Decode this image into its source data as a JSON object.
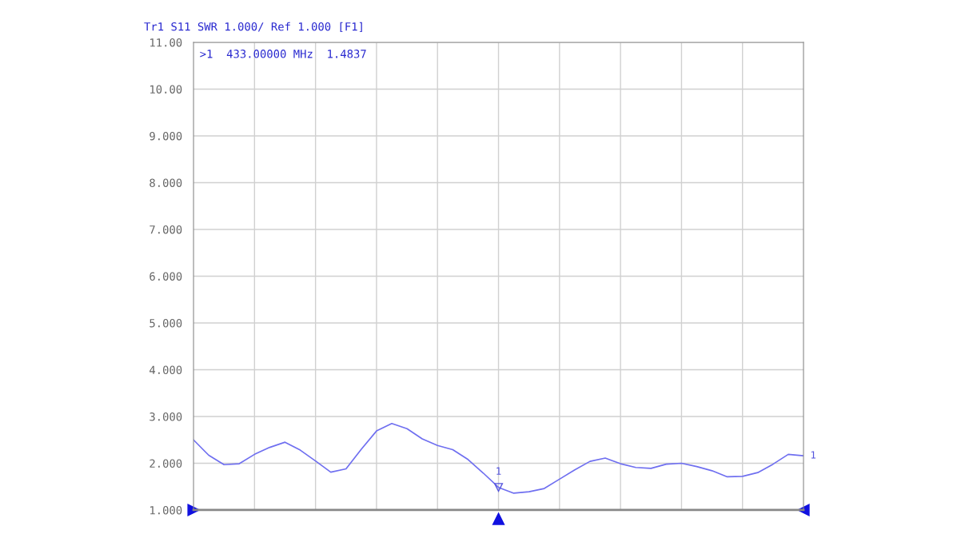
{
  "chart_data": {
    "type": "line",
    "title": "Tr1 S11 SWR 1.000/ Ref 1.000 [F1]",
    "categories": [
      null,
      null,
      null,
      null,
      null,
      null,
      null,
      null,
      null,
      null,
      null,
      null,
      null,
      null,
      null,
      null,
      null,
      null,
      null,
      null,
      null,
      null,
      null,
      null,
      null,
      null,
      null,
      null,
      null,
      null,
      null,
      null,
      null,
      null,
      null,
      null,
      null,
      null,
      null,
      null,
      null
    ],
    "series": [
      {
        "color": "#6f6ff0",
        "values": [
          2.5,
          2.17,
          1.97,
          1.99,
          2.19,
          2.34,
          2.45,
          2.28,
          2.05,
          1.81,
          1.88,
          2.3,
          2.69,
          2.85,
          2.74,
          2.52,
          2.38,
          2.29,
          2.08,
          1.79,
          1.4837,
          1.36,
          1.39,
          1.46,
          1.66,
          1.86,
          2.04,
          2.11,
          1.99,
          1.91,
          1.89,
          1.98,
          2.0,
          1.93,
          1.84,
          1.71,
          1.72,
          1.8,
          1.98,
          2.19,
          2.16
        ]
      }
    ],
    "ylim": [
      1,
      11
    ],
    "yticks": [
      {
        "value": 1,
        "label": "1.000"
      },
      {
        "value": 2,
        "label": "2.000"
      },
      {
        "value": 3,
        "label": "3.000"
      },
      {
        "value": 4,
        "label": "4.000"
      },
      {
        "value": 5,
        "label": "5.000"
      },
      {
        "value": 6,
        "label": "6.000"
      },
      {
        "value": 7,
        "label": "7.000"
      },
      {
        "value": 8,
        "label": "8.000"
      },
      {
        "value": 9,
        "label": "9.000"
      },
      {
        "value": 10,
        "label": "10.00"
      },
      {
        "value": 11,
        "label": "11.00"
      }
    ],
    "tick_labels": "y",
    "grid": true,
    "marker": "none",
    "line_style": "solid",
    "annotations": [
      ">1  433.00000 MHz  1.4837",
      {
        "text": "1",
        "y": 1.4837
      },
      "1"
    ]
  }
}
